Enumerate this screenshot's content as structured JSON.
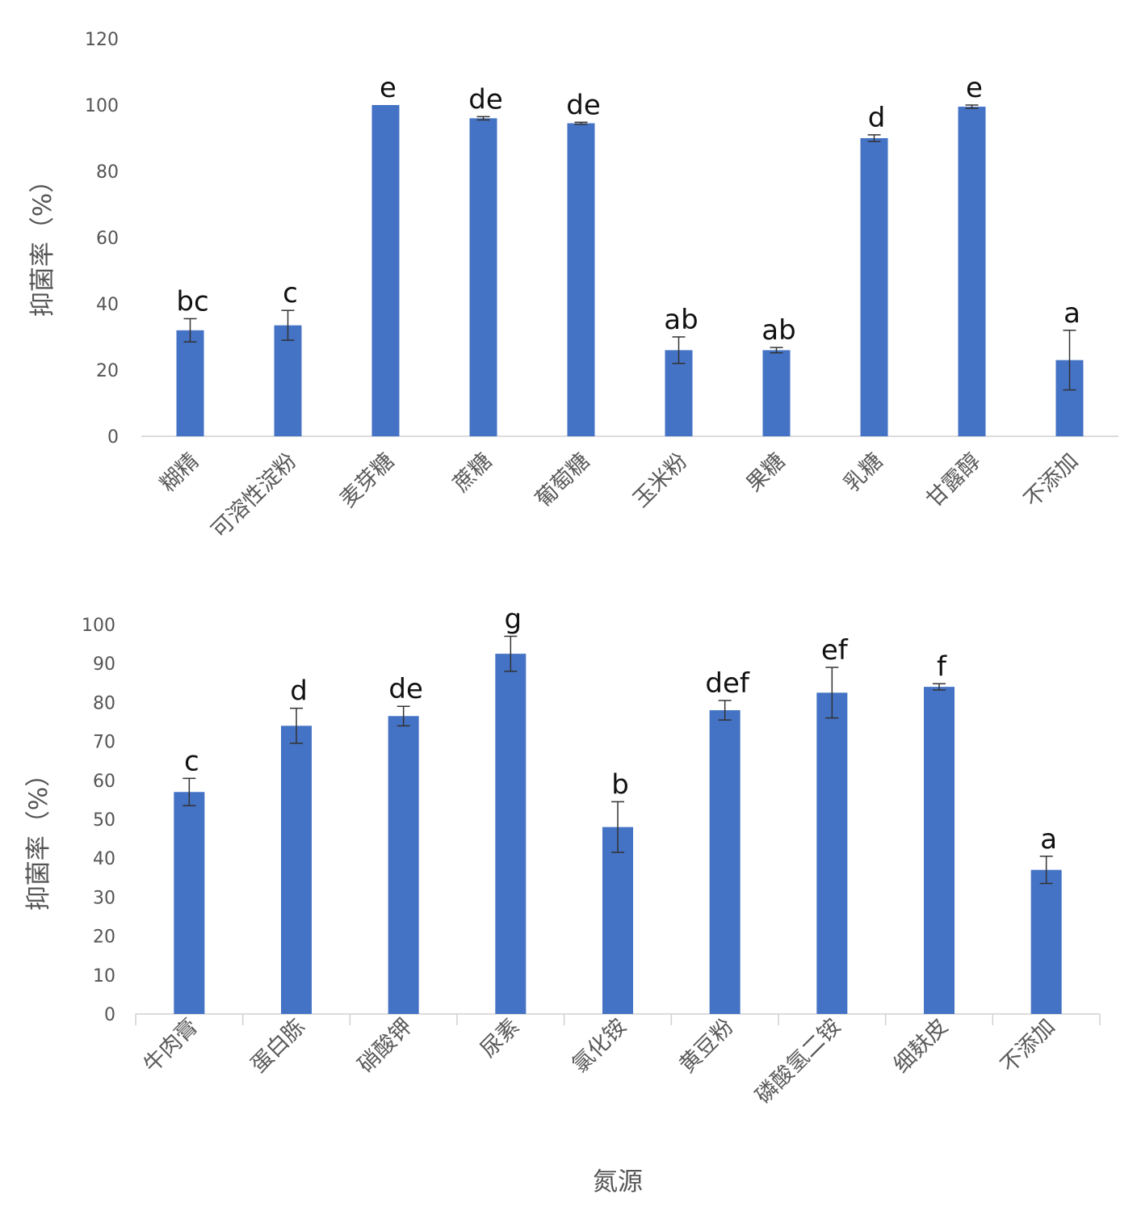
{
  "chart_data": [
    {
      "type": "bar",
      "title": "",
      "xlabel": "",
      "ylabel": "抑菌率（%）",
      "ylim": [
        0,
        120
      ],
      "yticks": [
        0,
        20,
        40,
        60,
        80,
        100,
        120
      ],
      "categories": [
        "糊精",
        "可溶性淀粉",
        "麦芽糖",
        "蔗糖",
        "葡萄糖",
        "玉米粉",
        "果糖",
        "乳糖",
        "甘露醇",
        "不添加"
      ],
      "values": [
        32,
        33.5,
        100,
        96,
        94.5,
        26,
        26,
        90,
        99.5,
        23
      ],
      "errors": [
        3.5,
        4.5,
        0,
        0.5,
        0.3,
        4,
        0.8,
        1,
        0.5,
        9
      ],
      "significance": [
        "bc",
        "c",
        "e",
        "de",
        "de",
        "ab",
        "ab",
        "d",
        "e",
        "a"
      ],
      "grid": false,
      "color": "#4472C4"
    },
    {
      "type": "bar",
      "title": "",
      "xlabel": "氮源",
      "ylabel": "抑菌率（%）",
      "ylim": [
        0,
        100
      ],
      "yticks": [
        0,
        10,
        20,
        30,
        40,
        50,
        60,
        70,
        80,
        90,
        100
      ],
      "categories": [
        "牛肉膏",
        "蛋白胨",
        "硝酸钾",
        "尿素",
        "氯化铵",
        "黄豆粉",
        "磷酸氢二铵",
        "细麸皮",
        "不添加"
      ],
      "values": [
        57,
        74,
        76.5,
        92.5,
        48,
        78,
        82.5,
        84,
        37
      ],
      "errors": [
        3.5,
        4.5,
        2.5,
        4.5,
        6.5,
        2.5,
        6.5,
        0.8,
        3.5
      ],
      "significance": [
        "c",
        "d",
        "de",
        "g",
        "b",
        "def",
        "ef",
        "f",
        "a"
      ],
      "grid": false,
      "color": "#4472C4"
    }
  ]
}
